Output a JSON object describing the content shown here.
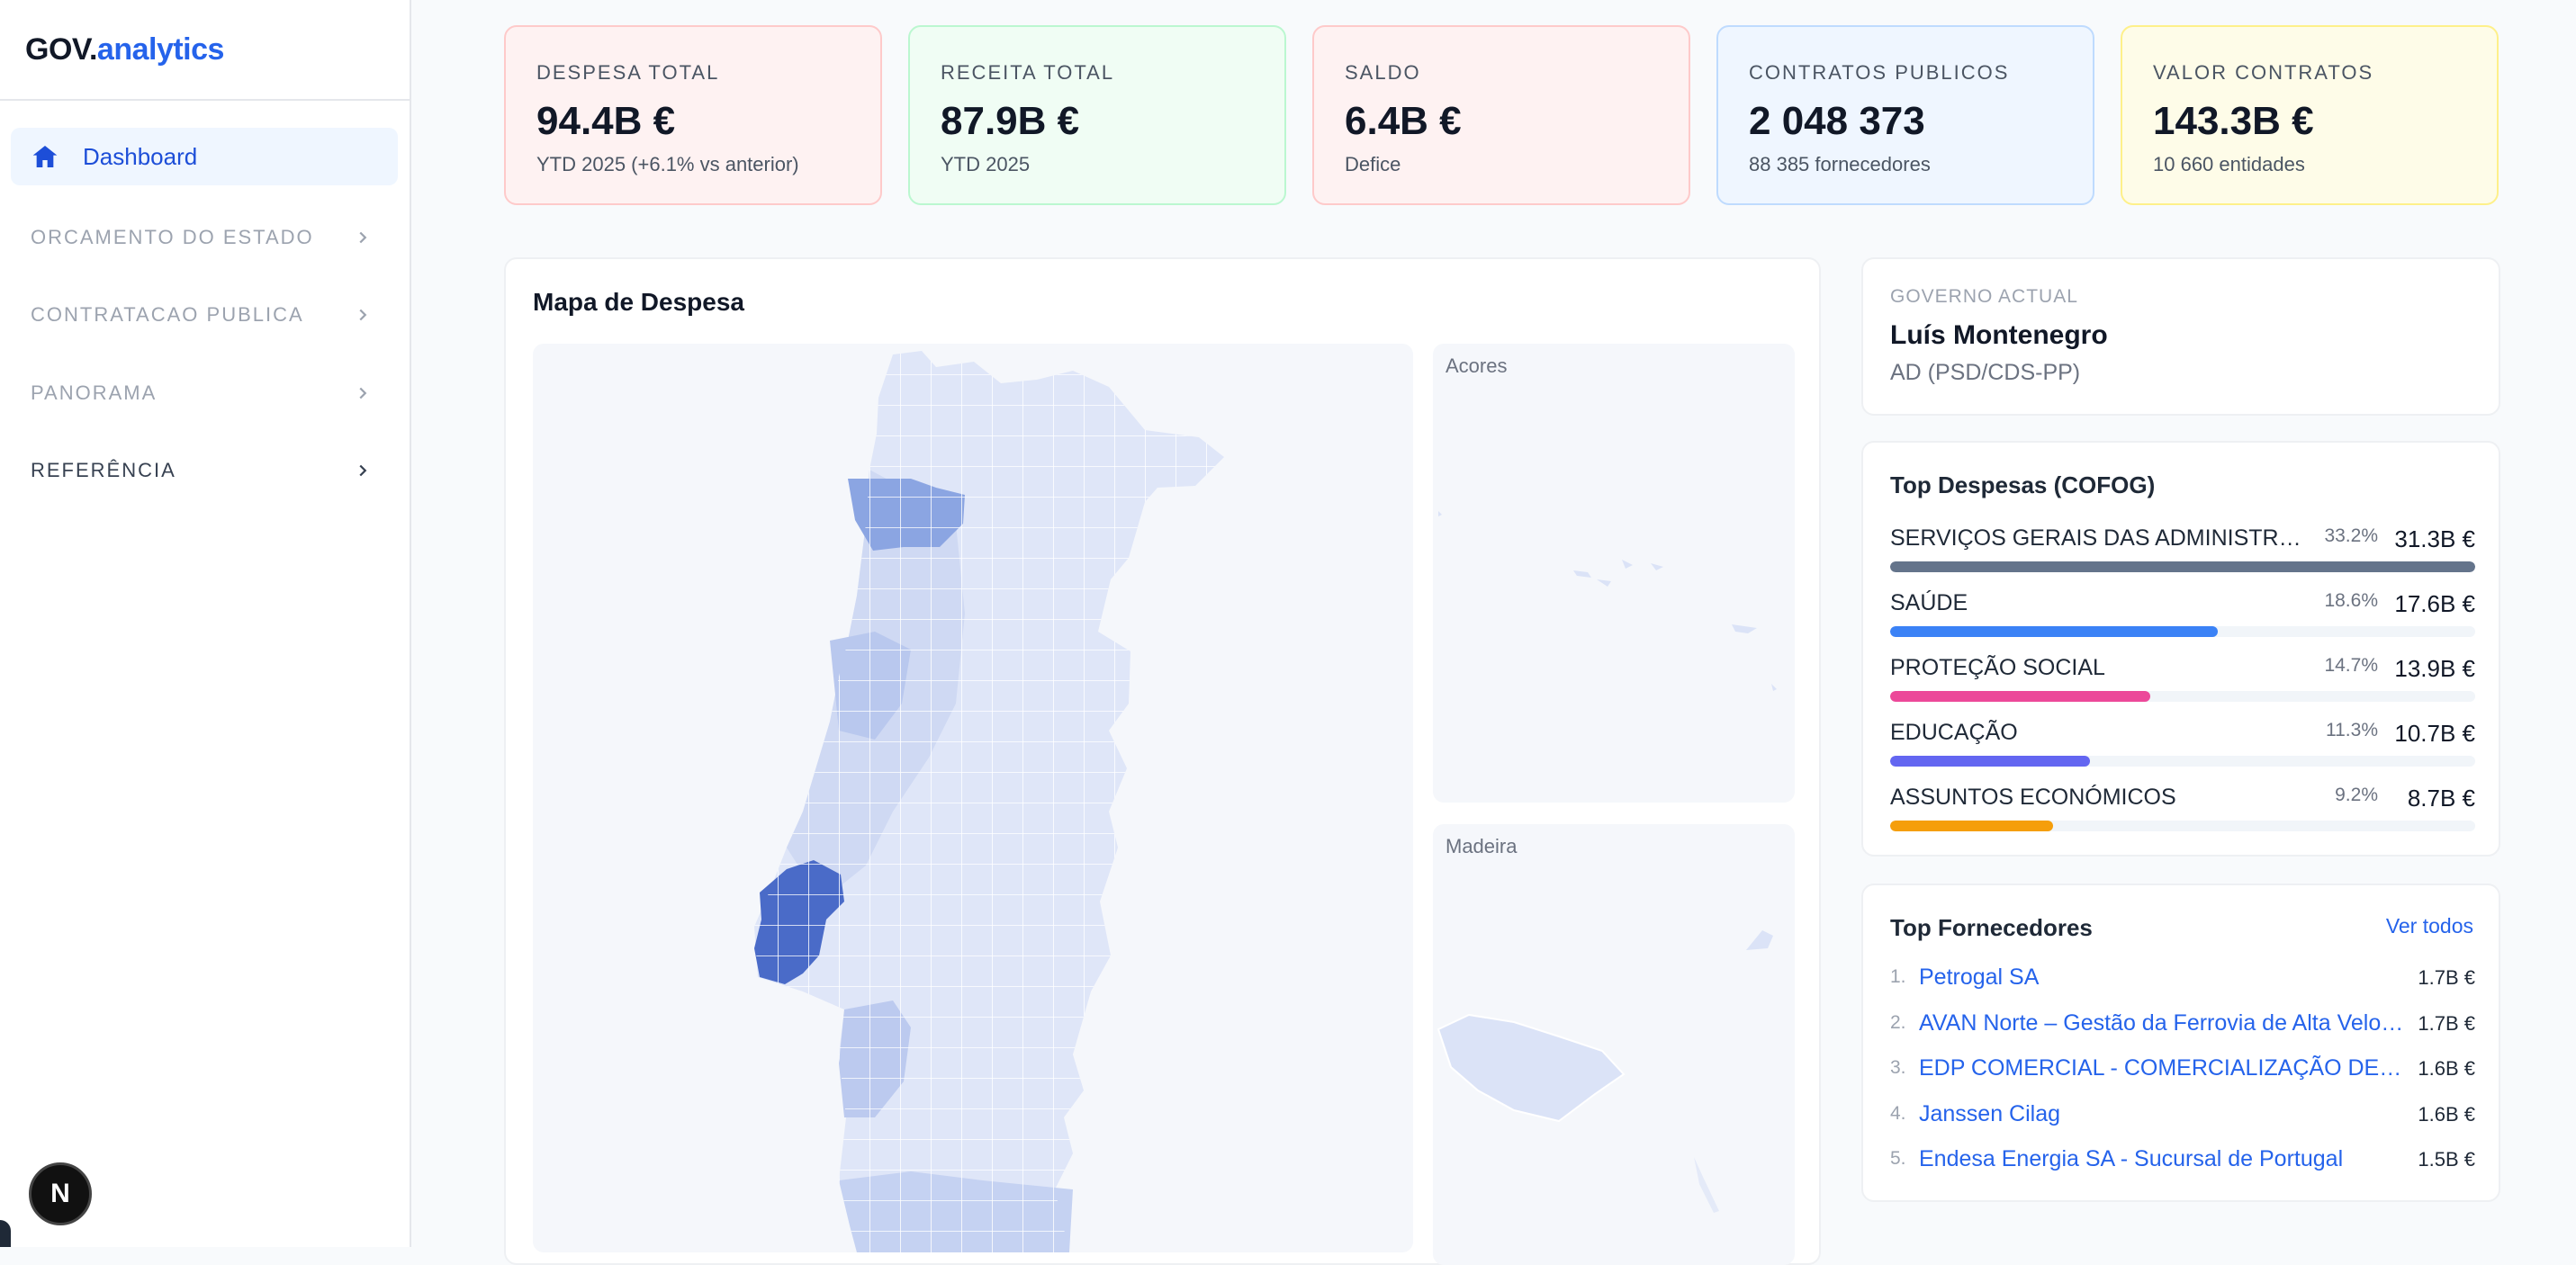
{
  "brand": {
    "part1": "GOV.",
    "part2": "analytics"
  },
  "sidebar": {
    "active": {
      "label": "Dashboard",
      "icon": "home-icon"
    },
    "groups": [
      {
        "label": "ORCAMENTO DO ESTADO"
      },
      {
        "label": "CONTRATACAO PUBLICA"
      },
      {
        "label": "PANORAMA"
      },
      {
        "label": "REFERÊNCIA"
      }
    ]
  },
  "kpis": [
    {
      "title": "DESPESA TOTAL",
      "value": "94.4B €",
      "sub": "YTD 2025 (+6.1% vs anterior)",
      "bg": "#fef2f2",
      "border": "#fecaca"
    },
    {
      "title": "RECEITA TOTAL",
      "value": "87.9B €",
      "sub": "YTD 2025",
      "bg": "#f0fdf4",
      "border": "#bbf7d0"
    },
    {
      "title": "SALDO",
      "value": "6.4B €",
      "sub": "Defice",
      "bg": "#fef2f2",
      "border": "#fecaca"
    },
    {
      "title": "CONTRATOS PUBLICOS",
      "value": "2 048 373",
      "sub": "88 385 fornecedores",
      "bg": "#eff6ff",
      "border": "#bfdbfe"
    },
    {
      "title": "VALOR CONTRATOS",
      "value": "143.3B €",
      "sub": "10 660 entidades",
      "bg": "#fefce8",
      "border": "#fef08a"
    }
  ],
  "map": {
    "title": "Mapa de Despesa",
    "insets": {
      "acores": "Acores",
      "madeira": "Madeira"
    },
    "colors": {
      "base": "#dbe3f7",
      "mid": "#b8c8ee",
      "high": "#7f9de0",
      "max": "#4a6bc8"
    }
  },
  "government": {
    "kicker": "GOVERNO ACTUAL",
    "name": "Luís Montenegro",
    "party": "AD (PSD/CDS-PP)"
  },
  "cofog": {
    "title": "Top Despesas (COFOG)",
    "items": [
      {
        "name": "SERVIÇOS GERAIS DAS ADMINISTRAÇÕES PÚBLICAS",
        "pct": "33.2%",
        "value": "31.3B €",
        "share": 1.0,
        "color": "#64748b"
      },
      {
        "name": "SAÚDE",
        "pct": "18.6%",
        "value": "17.6B €",
        "share": 0.56,
        "color": "#3b82f6"
      },
      {
        "name": "PROTEÇÃO SOCIAL",
        "pct": "14.7%",
        "value": "13.9B €",
        "share": 0.444,
        "color": "#ec4899"
      },
      {
        "name": "EDUCAÇÃO",
        "pct": "11.3%",
        "value": "10.7B €",
        "share": 0.342,
        "color": "#6366f1"
      },
      {
        "name": "ASSUNTOS ECONÓMICOS",
        "pct": "9.2%",
        "value": "8.7B €",
        "share": 0.278,
        "color": "#f59e0b"
      }
    ]
  },
  "suppliers": {
    "title": "Top Fornecedores",
    "see_all": "Ver todos",
    "items": [
      {
        "n": "1.",
        "name": "Petrogal SA",
        "value": "1.7B €"
      },
      {
        "n": "2.",
        "name": "AVAN Norte – Gestão da Ferrovia de Alta Velocidade",
        "value": "1.7B €"
      },
      {
        "n": "3.",
        "name": "EDP COMERCIAL - COMERCIALIZAÇÃO DE ENERGIA",
        "value": "1.6B €"
      },
      {
        "n": "4.",
        "name": "Janssen Cilag",
        "value": "1.6B €"
      },
      {
        "n": "5.",
        "name": "Endesa Energia SA - Sucursal de Portugal",
        "value": "1.5B €"
      }
    ]
  },
  "dev_badge": "N"
}
